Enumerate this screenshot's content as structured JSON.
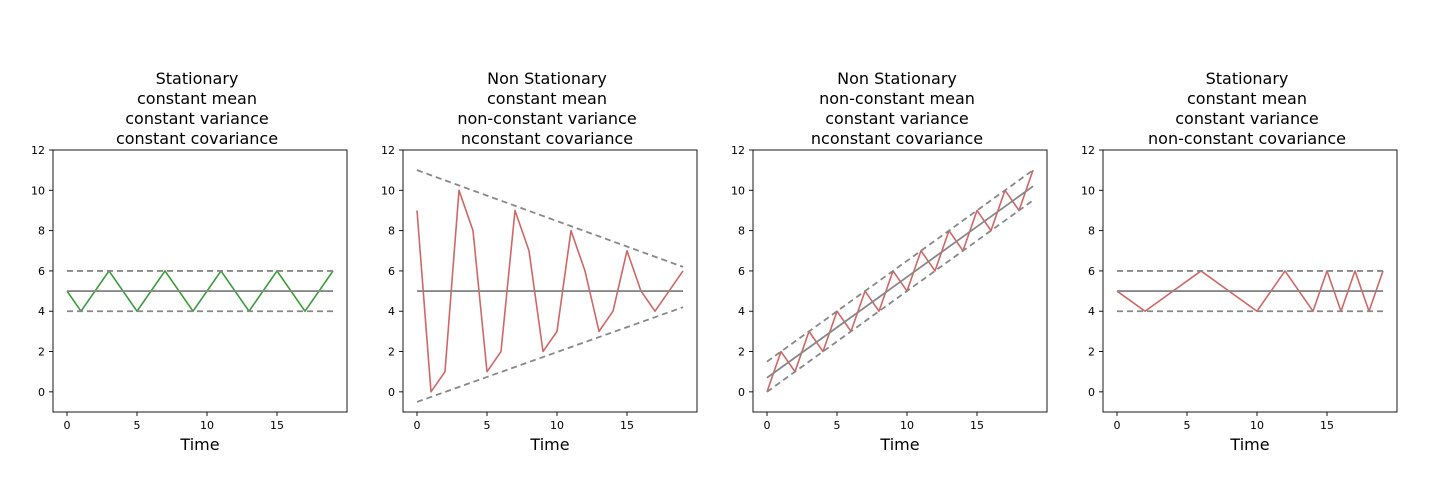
{
  "colors": {
    "stationary_series": "#3a9a3a",
    "nonstationary_series": "#d06666",
    "reference_lines": "#888888"
  },
  "chart_data": [
    {
      "type": "line",
      "title": [
        "Stationary",
        "constant mean",
        "constant variance",
        "constant covariance"
      ],
      "xlabel": "Time",
      "ylabel": "",
      "xlim": [
        -1,
        20
      ],
      "ylim": [
        -1,
        12
      ],
      "xticks": [
        0,
        5,
        10,
        15
      ],
      "yticks": [
        0,
        2,
        4,
        6,
        8,
        10,
        12
      ],
      "grid": false,
      "series": [
        {
          "role": "series",
          "color": "#3a9a3a",
          "dashed": false,
          "x": [
            0,
            1,
            2,
            3,
            4,
            5,
            6,
            7,
            8,
            9,
            10,
            11,
            12,
            13,
            14,
            15,
            16,
            17,
            18,
            19
          ],
          "y": [
            5,
            4,
            5,
            6,
            5,
            4,
            5,
            6,
            5,
            4,
            5,
            6,
            5,
            4,
            5,
            6,
            5,
            4,
            5,
            6
          ]
        },
        {
          "role": "mean",
          "color": "#888888",
          "dashed": false,
          "x": [
            0,
            19
          ],
          "y": [
            5,
            5
          ]
        },
        {
          "role": "upper-bound",
          "color": "#888888",
          "dashed": true,
          "x": [
            0,
            19
          ],
          "y": [
            6,
            6
          ]
        },
        {
          "role": "lower-bound",
          "color": "#888888",
          "dashed": true,
          "x": [
            0,
            19
          ],
          "y": [
            4,
            4
          ]
        }
      ]
    },
    {
      "type": "line",
      "title": [
        "Non Stationary",
        "constant mean",
        "non-constant variance",
        "nconstant covariance"
      ],
      "xlabel": "Time",
      "ylabel": "",
      "xlim": [
        -1,
        20
      ],
      "ylim": [
        -1,
        12
      ],
      "xticks": [
        0,
        5,
        10,
        15
      ],
      "yticks": [
        0,
        2,
        4,
        6,
        8,
        10,
        12
      ],
      "grid": false,
      "series": [
        {
          "role": "series",
          "color": "#d06666",
          "dashed": false,
          "x": [
            0,
            1,
            2,
            3,
            4,
            5,
            6,
            7,
            8,
            9,
            10,
            11,
            12,
            13,
            14,
            15,
            16,
            17,
            18,
            19
          ],
          "y": [
            9,
            0,
            1,
            10,
            8,
            1,
            2,
            9,
            7,
            2,
            3,
            8,
            6,
            3,
            4,
            7,
            5,
            4,
            5,
            6
          ]
        },
        {
          "role": "mean",
          "color": "#888888",
          "dashed": false,
          "x": [
            0,
            19
          ],
          "y": [
            5,
            5
          ]
        },
        {
          "role": "upper-bound",
          "color": "#888888",
          "dashed": true,
          "x": [
            0,
            19
          ],
          "y": [
            11,
            6.2
          ]
        },
        {
          "role": "lower-bound",
          "color": "#888888",
          "dashed": true,
          "x": [
            0,
            19
          ],
          "y": [
            -0.5,
            4.2
          ]
        }
      ]
    },
    {
      "type": "line",
      "title": [
        "Non Stationary",
        "non-constant mean",
        "constant variance",
        "nconstant covariance"
      ],
      "xlabel": "Time",
      "ylabel": "",
      "xlim": [
        -1,
        20
      ],
      "ylim": [
        -1,
        12
      ],
      "xticks": [
        0,
        5,
        10,
        15
      ],
      "yticks": [
        0,
        2,
        4,
        6,
        8,
        10,
        12
      ],
      "grid": false,
      "series": [
        {
          "role": "series",
          "color": "#d06666",
          "dashed": false,
          "x": [
            0,
            1,
            2,
            3,
            4,
            5,
            6,
            7,
            8,
            9,
            10,
            11,
            12,
            13,
            14,
            15,
            16,
            17,
            18,
            19
          ],
          "y": [
            0,
            2,
            1,
            3,
            2,
            4,
            3,
            5,
            4,
            6,
            5,
            7,
            6,
            8,
            7,
            9,
            8,
            10,
            9,
            11
          ]
        },
        {
          "role": "mean",
          "color": "#888888",
          "dashed": false,
          "x": [
            0,
            19
          ],
          "y": [
            0.7,
            10.2
          ]
        },
        {
          "role": "upper-bound",
          "color": "#888888",
          "dashed": true,
          "x": [
            0,
            19
          ],
          "y": [
            1.5,
            11
          ]
        },
        {
          "role": "lower-bound",
          "color": "#888888",
          "dashed": true,
          "x": [
            0,
            19
          ],
          "y": [
            0,
            9.5
          ]
        }
      ]
    },
    {
      "type": "line",
      "title": [
        "Stationary",
        "constant mean",
        "constant variance",
        "non-constant covariance"
      ],
      "xlabel": "Time",
      "ylabel": "",
      "xlim": [
        -1,
        20
      ],
      "ylim": [
        -1,
        12
      ],
      "xticks": [
        0,
        5,
        10,
        15
      ],
      "yticks": [
        0,
        2,
        4,
        6,
        8,
        10,
        12
      ],
      "grid": false,
      "series": [
        {
          "role": "series",
          "color": "#d06666",
          "dashed": false,
          "x": [
            0,
            2,
            6,
            10,
            12,
            14,
            15,
            16,
            17,
            18,
            19
          ],
          "y": [
            5,
            4,
            6,
            4,
            6,
            4,
            6,
            4,
            6,
            4,
            6
          ]
        },
        {
          "role": "mean",
          "color": "#888888",
          "dashed": false,
          "x": [
            0,
            19
          ],
          "y": [
            5,
            5
          ]
        },
        {
          "role": "upper-bound",
          "color": "#888888",
          "dashed": true,
          "x": [
            0,
            19
          ],
          "y": [
            6,
            6
          ]
        },
        {
          "role": "lower-bound",
          "color": "#888888",
          "dashed": true,
          "x": [
            0,
            19
          ],
          "y": [
            4,
            4
          ]
        }
      ]
    }
  ]
}
